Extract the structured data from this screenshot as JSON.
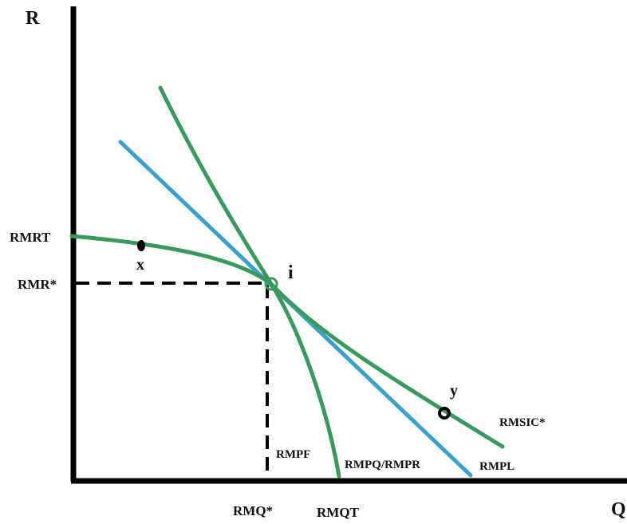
{
  "axes": {
    "y_label": "R",
    "x_label": "Q"
  },
  "labels": {
    "rmrt": "RMRT",
    "rmr_star": "RMR*",
    "rmq_star": "RMQ*",
    "rmqt": "RMQT",
    "rmpf": "RMPF",
    "rmpq_rmpr_main": "RMPQ/RMPR",
    "rmpl": "RMPL",
    "rmsic_star": "RMSIC*"
  },
  "points": {
    "x": "x",
    "y": "y",
    "i": "i"
  },
  "colors": {
    "axis": "#000000",
    "green_curve": "#3a9a5e",
    "blue_line": "#3aa0cc",
    "dashed": "#000000",
    "point": "#000000"
  }
}
